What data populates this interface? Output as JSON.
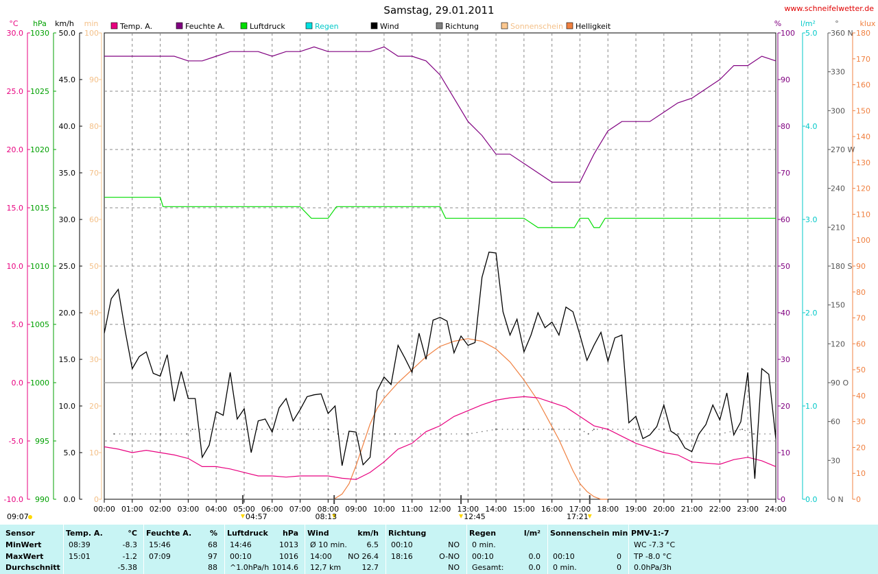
{
  "title": "Samstag, 29.01.2011",
  "website": "www.schneifelwetter.de",
  "legend": [
    {
      "label": "Temp. A.",
      "color": "#e8007f"
    },
    {
      "label": "Feuchte A.",
      "color": "#800080"
    },
    {
      "label": "Luftdruck",
      "color": "#00dd00"
    },
    {
      "label": "Regen",
      "color": "#00e0e0"
    },
    {
      "label": "Wind",
      "color": "#000000"
    },
    {
      "label": "Richtung",
      "color": "#808080"
    },
    {
      "label": "Sonnenschein",
      "color": "#fcc890"
    },
    {
      "label": "Helligkeit",
      "color": "#f08040"
    }
  ],
  "axis_units": {
    "temp": "°C",
    "pressure": "hPa",
    "wind": "km/h",
    "sun": "min",
    "humidity": "%",
    "rain": "l/m²",
    "direction": "°",
    "lux": "klux"
  },
  "axis_ticks": {
    "temp": [
      "30.0",
      "25.0",
      "20.0",
      "15.0",
      "10.0",
      "5.0",
      "0.0",
      "-5.0",
      "-10.0"
    ],
    "pressure": [
      "1030",
      "1025",
      "1020",
      "1015",
      "1010",
      "1005",
      "1000",
      "995",
      "990"
    ],
    "wind": [
      "50.0",
      "45.0",
      "40.0",
      "35.0",
      "30.0",
      "25.0",
      "20.0",
      "15.0",
      "10.0",
      "5.0",
      "0.0"
    ],
    "sun": [
      "100",
      "90",
      "80",
      "70",
      "60",
      "50",
      "40",
      "30",
      "20",
      "10",
      "0"
    ],
    "humidity": [
      "100",
      "90",
      "80",
      "70",
      "60",
      "50",
      "40",
      "30",
      "20",
      "10",
      "0"
    ],
    "rain": [
      "5.0",
      "4.0",
      "3.0",
      "2.0",
      "1.0",
      "0.0"
    ],
    "direction": [
      "360 N",
      "330",
      "300",
      "270 W",
      "240",
      "210",
      "180 S",
      "150",
      "120",
      "90 O",
      "60",
      "30",
      "0 N"
    ],
    "lux": [
      "180",
      "170",
      "160",
      "150",
      "140",
      "130",
      "120",
      "110",
      "100",
      "90",
      "80",
      "70",
      "60",
      "50",
      "40",
      "30",
      "20",
      "10",
      "0"
    ]
  },
  "x_ticks": [
    "00:00",
    "01:00",
    "02:00",
    "03:00",
    "04:00",
    "05:00",
    "06:00",
    "07:00",
    "08:00",
    "09:00",
    "10:00",
    "11:00",
    "12:00",
    "13:00",
    "14:00",
    "15:00",
    "16:00",
    "17:00",
    "18:00",
    "19:00",
    "20:00",
    "21:00",
    "22:00",
    "23:00",
    "24:00"
  ],
  "time_markers": [
    {
      "label": "09:07",
      "x_hour": null
    },
    {
      "label": "04:57",
      "x_hour": 4.95
    },
    {
      "label": "08:13",
      "x_hour": 8.2167
    },
    {
      "label": "12:45",
      "x_hour": 12.75
    },
    {
      "label": "17:21",
      "x_hour": 17.35
    }
  ],
  "chart_data": {
    "type": "line",
    "title": "Samstag, 29.01.2011",
    "x_unit": "hours",
    "xlim": [
      0,
      24
    ],
    "series": [
      {
        "name": "Temp. A.",
        "axis": "temp",
        "unit": "°C",
        "ylim": [
          -10,
          30
        ],
        "color": "#e8007f",
        "x": [
          0,
          0.5,
          1,
          1.5,
          2,
          2.5,
          3,
          3.5,
          4,
          4.5,
          5,
          5.5,
          6,
          6.5,
          7,
          7.5,
          8,
          8.5,
          9,
          9.5,
          10,
          10.5,
          11,
          11.5,
          12,
          12.5,
          13,
          13.5,
          14,
          14.5,
          15,
          15.5,
          16,
          16.5,
          17,
          17.5,
          18,
          18.5,
          19,
          19.5,
          20,
          20.5,
          21,
          21.5,
          22,
          22.5,
          23,
          23.5,
          24
        ],
        "y": [
          -5.5,
          -5.7,
          -6.0,
          -5.8,
          -6.0,
          -6.2,
          -6.5,
          -7.2,
          -7.2,
          -7.4,
          -7.7,
          -8.0,
          -8.0,
          -8.1,
          -8.0,
          -8.0,
          -8.0,
          -8.2,
          -8.3,
          -7.7,
          -6.8,
          -5.7,
          -5.2,
          -4.2,
          -3.7,
          -2.9,
          -2.4,
          -1.9,
          -1.5,
          -1.3,
          -1.2,
          -1.3,
          -1.7,
          -2.1,
          -2.9,
          -3.7,
          -4.0,
          -4.6,
          -5.2,
          -5.6,
          -6.0,
          -6.2,
          -6.8,
          -6.9,
          -7.0,
          -6.6,
          -6.4,
          -6.7,
          -7.2
        ]
      },
      {
        "name": "Feuchte A.",
        "axis": "humidity",
        "unit": "%",
        "ylim": [
          0,
          100
        ],
        "color": "#800080",
        "x": [
          0,
          0.5,
          1,
          1.5,
          2,
          2.5,
          3,
          3.5,
          4,
          4.5,
          5,
          5.5,
          6,
          6.5,
          7,
          7.5,
          8,
          8.5,
          9,
          9.5,
          10,
          10.5,
          11,
          11.5,
          12,
          12.5,
          13,
          13.5,
          14,
          14.5,
          15,
          15.5,
          16,
          16.5,
          17,
          17.5,
          18,
          18.5,
          19,
          19.5,
          20,
          20.5,
          21,
          21.5,
          22,
          22.5,
          23,
          23.5,
          24
        ],
        "y": [
          95,
          95,
          95,
          95,
          95,
          95,
          94,
          94,
          95,
          96,
          96,
          96,
          95,
          96,
          96,
          97,
          96,
          96,
          96,
          96,
          97,
          95,
          95,
          94,
          91,
          86,
          81,
          78,
          74,
          74,
          72,
          70,
          68,
          68,
          68,
          74,
          79,
          81,
          81,
          81,
          83,
          85,
          86,
          88,
          90,
          93,
          93,
          95,
          94
        ]
      },
      {
        "name": "Luftdruck",
        "axis": "pressure",
        "unit": "hPa",
        "ylim": [
          990,
          1030
        ],
        "color": "#00dd00",
        "x": [
          0,
          1,
          2,
          2.1,
          3,
          4,
          5,
          6,
          7,
          7.4,
          8,
          8.3,
          8.5,
          9,
          10,
          11,
          12,
          12.2,
          13,
          14,
          15,
          15.5,
          16,
          16.5,
          16.8,
          17,
          17.3,
          17.5,
          17.7,
          17.9,
          18.5,
          19,
          20,
          21,
          22,
          23,
          24
        ],
        "y": [
          1015.9,
          1015.9,
          1015.9,
          1015.1,
          1015.1,
          1015.1,
          1015.1,
          1015.1,
          1015.1,
          1014.1,
          1014.1,
          1015.1,
          1015.1,
          1015.1,
          1015.1,
          1015.1,
          1015.1,
          1014.1,
          1014.1,
          1014.1,
          1014.1,
          1013.3,
          1013.3,
          1013.3,
          1013.3,
          1014.1,
          1014.1,
          1013.3,
          1013.3,
          1014.1,
          1014.1,
          1014.1,
          1014.1,
          1014.1,
          1014.1,
          1014.1,
          1014.1
        ]
      },
      {
        "name": "Wind",
        "axis": "wind",
        "unit": "km/h",
        "ylim": [
          0,
          50
        ],
        "color": "#000000",
        "x": [
          0,
          0.25,
          0.5,
          0.75,
          1,
          1.25,
          1.5,
          1.75,
          2,
          2.25,
          2.5,
          2.75,
          3,
          3.25,
          3.5,
          3.75,
          4,
          4.25,
          4.5,
          4.75,
          5,
          5.25,
          5.5,
          5.75,
          6,
          6.25,
          6.5,
          6.75,
          7,
          7.25,
          7.5,
          7.75,
          8,
          8.25,
          8.5,
          8.75,
          9,
          9.25,
          9.5,
          9.75,
          10,
          10.25,
          10.5,
          10.75,
          11,
          11.25,
          11.5,
          11.75,
          12,
          12.25,
          12.5,
          12.75,
          13,
          13.25,
          13.5,
          13.75,
          14,
          14.25,
          14.5,
          14.75,
          15,
          15.25,
          15.5,
          15.75,
          16,
          16.25,
          16.5,
          16.75,
          17,
          17.25,
          17.5,
          17.75,
          18,
          18.25,
          18.5,
          18.75,
          19,
          19.25,
          19.5,
          19.75,
          20,
          20.25,
          20.5,
          20.75,
          21,
          21.25,
          21.5,
          21.75,
          22,
          22.25,
          22.5,
          22.75,
          23,
          23.25,
          23.5,
          23.75,
          24
        ],
        "y": [
          17.8,
          21.5,
          22.5,
          18.0,
          14.0,
          15.3,
          15.8,
          13.5,
          13.2,
          15.5,
          10.5,
          13.7,
          10.8,
          10.8,
          4.5,
          5.8,
          9.4,
          9.0,
          13.6,
          8.6,
          9.7,
          5.0,
          8.4,
          8.6,
          7.2,
          9.8,
          10.8,
          8.4,
          9.6,
          11.0,
          11.2,
          11.3,
          9.2,
          10.0,
          3.6,
          7.3,
          7.2,
          3.7,
          4.5,
          11.6,
          13.1,
          12.3,
          16.5,
          15.1,
          13.6,
          17.8,
          15.0,
          19.2,
          19.5,
          19.1,
          15.7,
          17.5,
          16.5,
          16.8,
          23.8,
          26.5,
          26.4,
          20.1,
          17.6,
          19.3,
          15.8,
          17.6,
          20.0,
          18.4,
          19.0,
          17.6,
          20.6,
          20.1,
          17.6,
          14.9,
          16.5,
          17.9,
          14.8,
          17.3,
          17.6,
          8.2,
          8.9,
          6.5,
          6.9,
          7.8,
          10.1,
          7.3,
          6.8,
          5.5,
          5.1,
          7.0,
          8.0,
          10.1,
          8.5,
          11.4,
          6.9,
          8.3,
          13.6,
          2.2,
          14.0,
          13.4,
          6.5
        ]
      },
      {
        "name": "Sonnenschein",
        "axis": "sun",
        "unit": "min",
        "ylim": [
          0,
          100
        ],
        "color": "#fcc890",
        "x": [
          0.35,
          1,
          2,
          2.95,
          3.15,
          4,
          5,
          6,
          7,
          8,
          8.35,
          9,
          10,
          10.4,
          11,
          12,
          13,
          14,
          15,
          16,
          17,
          17.3,
          17.5,
          18,
          19,
          20,
          20.5,
          21,
          22,
          22.8,
          23.2,
          24
        ],
        "y": [
          14,
          14,
          14,
          14,
          15,
          15,
          15,
          15,
          15,
          15,
          14,
          14,
          14,
          14,
          14,
          14,
          14,
          15,
          15,
          15,
          15,
          14,
          15,
          15,
          15,
          15,
          14,
          14,
          14,
          15,
          14,
          14
        ]
      },
      {
        "name": "Helligkeit",
        "axis": "lux",
        "unit": "klux",
        "ylim": [
          0,
          180
        ],
        "color": "#f08040",
        "x": [
          8.2,
          8.5,
          8.75,
          9,
          9.25,
          9.5,
          9.75,
          10,
          10.5,
          11,
          11.5,
          12,
          12.5,
          13,
          13.5,
          14,
          14.5,
          15,
          15.5,
          16,
          16.25,
          16.5,
          16.75,
          17,
          17.25,
          17.5,
          17.75,
          18
        ],
        "y": [
          0,
          2,
          6,
          13,
          21,
          29,
          35,
          39,
          45,
          50,
          55,
          59,
          61,
          62,
          61,
          58,
          53,
          46,
          38,
          28,
          23,
          17,
          11,
          6,
          3,
          1,
          0,
          0
        ]
      },
      {
        "name": "Regen",
        "axis": "rain",
        "unit": "l/m²",
        "ylim": [
          0,
          5
        ],
        "color": "#00e0e0",
        "x": [
          0,
          24
        ],
        "y": [
          0,
          0
        ]
      }
    ]
  },
  "stats": {
    "columns": [
      {
        "header": "Sensor",
        "unit": "",
        "rows": [
          "MinWert",
          "MaxWert",
          "Durchschnitt"
        ]
      },
      {
        "header": "Temp. A.",
        "unit": "°C",
        "time": [
          "08:39",
          "15:01",
          ""
        ],
        "value": [
          "-8.3",
          "-1.2",
          "-5.38"
        ]
      },
      {
        "header": "Feuchte A.",
        "unit": "%",
        "time": [
          "15:46",
          "07:09",
          ""
        ],
        "value": [
          "68",
          "97",
          "88"
        ]
      },
      {
        "header": "Luftdruck",
        "unit": "hPa",
        "time": [
          "14:46",
          "00:10",
          "^1.0hPa/h"
        ],
        "value": [
          "1013",
          "1016",
          "1014.6"
        ]
      },
      {
        "header": "Wind",
        "unit": "km/h",
        "time": [
          "Ø 10 min.",
          "14:00",
          "12,7 km"
        ],
        "value": [
          "6.5",
          "NO 26.4",
          "12.7"
        ]
      },
      {
        "header": "Richtung",
        "unit": "",
        "time": [
          "00:10",
          "18:16",
          ""
        ],
        "value": [
          "NO",
          "O-NO",
          "NO"
        ]
      },
      {
        "header": "Regen",
        "unit": "l/m²",
        "time": [
          "0 min.",
          "00:10",
          "Gesamt:"
        ],
        "value": [
          "",
          "0.0",
          "0.0"
        ]
      },
      {
        "header": "Sonnenschein min",
        "unit": "",
        "time": [
          "",
          "00:10",
          "0 min."
        ],
        "value": [
          "",
          "0",
          "0"
        ]
      },
      {
        "header": "PMV-1:-7",
        "unit": "",
        "time": [
          "WC -7.3 °C",
          "TP -8.0 °C",
          "0.0hPa/3h"
        ],
        "value": [
          "",
          "",
          ""
        ]
      }
    ]
  }
}
